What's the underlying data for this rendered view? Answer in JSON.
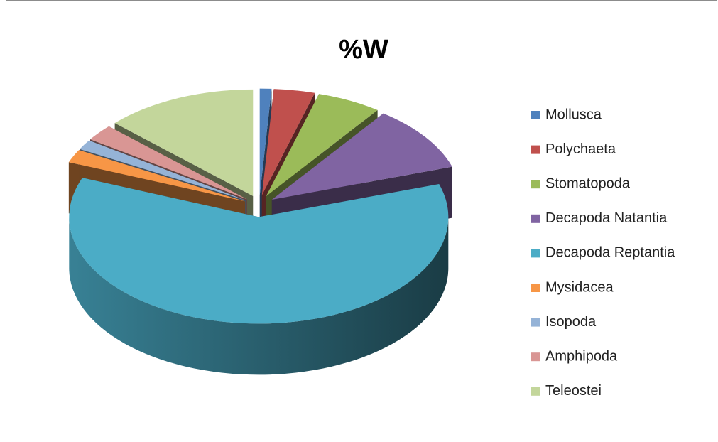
{
  "chart_data": {
    "type": "pie3d",
    "title": "%W",
    "categories": [
      "Mollusca",
      "Polychaeta",
      "Stomatopoda",
      "Decapoda Natantia",
      "Decapoda Reptantia",
      "Mysidacea",
      "Isopoda",
      "Amphipoda",
      "Teleostei"
    ],
    "values": [
      1,
      3.5,
      5.5,
      10,
      61,
      2,
      1.5,
      2.5,
      13
    ],
    "colors": [
      "#4f81bd",
      "#c0504d",
      "#9bbb59",
      "#8064a2",
      "#4bacc6",
      "#f79646",
      "#95b3d7",
      "#d99694",
      "#c3d69b"
    ],
    "legend": "right"
  }
}
